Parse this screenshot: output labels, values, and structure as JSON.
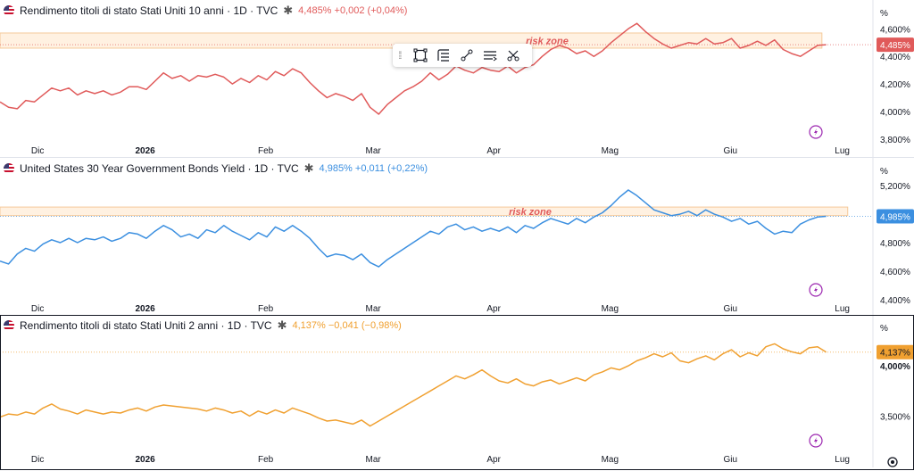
{
  "toolbar": {
    "items": [
      {
        "name": "drag-handle-icon"
      },
      {
        "name": "rectangle-tool-icon"
      },
      {
        "name": "line-style-icon"
      },
      {
        "name": "link-tool-icon"
      },
      {
        "name": "line-width-icon"
      },
      {
        "name": "more-tools-icon"
      }
    ]
  },
  "axis_unit": "%",
  "chart_data": [
    {
      "type": "line",
      "title": "Rendimento titoli di stato Stati Uniti 10 anni · 1D · TVC",
      "change": "4,485% +0,002 (+0,04%)",
      "color": "#e05a5a",
      "last_label": "4,485%",
      "last_value": 4.485,
      "ylim": [
        3.76,
        4.68
      ],
      "y_ticks": [
        {
          "v": 4.6,
          "label": "4,600%"
        },
        {
          "v": 4.4,
          "label": "4,400%"
        },
        {
          "v": 4.2,
          "label": "4,200%"
        },
        {
          "v": 4.0,
          "label": "4,000%"
        },
        {
          "v": 3.8,
          "label": "3,800%"
        }
      ],
      "x_ticks": [
        {
          "x": 5,
          "label": "Dic"
        },
        {
          "x": 30,
          "label": "2026"
        },
        {
          "x": 58,
          "label": "Feb"
        },
        {
          "x": 83,
          "label": "Mar"
        },
        {
          "x": 111,
          "label": "Apr"
        },
        {
          "x": 138,
          "label": "Mag"
        },
        {
          "x": 166,
          "label": "Giu"
        },
        {
          "x": 192,
          "label": "Lug"
        }
      ],
      "zone": {
        "label": "risk zone",
        "y_from": 4.46,
        "y_to": 4.57,
        "x_from": 0,
        "x_to": 191
      },
      "x": [
        0,
        2,
        4,
        6,
        8,
        10,
        12,
        14,
        16,
        18,
        20,
        22,
        24,
        26,
        28,
        30,
        32,
        34,
        36,
        38,
        40,
        42,
        44,
        46,
        48,
        50,
        52,
        54,
        56,
        58,
        60,
        62,
        64,
        66,
        68,
        70,
        72,
        74,
        76,
        78,
        80,
        82,
        84,
        86,
        88,
        90,
        92,
        94,
        96,
        98,
        100,
        102,
        104,
        106,
        108,
        110,
        112,
        114,
        116,
        118,
        120,
        122,
        124,
        126,
        128,
        130,
        132,
        134,
        136,
        138,
        140,
        142,
        144,
        146,
        148,
        150,
        152,
        154,
        156,
        158,
        160,
        162,
        164,
        166,
        168,
        170,
        172,
        174,
        176,
        178,
        180,
        182,
        184,
        186,
        188,
        190,
        192
      ],
      "values": [
        4.07,
        4.03,
        4.02,
        4.08,
        4.07,
        4.12,
        4.17,
        4.15,
        4.17,
        4.12,
        4.15,
        4.13,
        4.15,
        4.12,
        4.14,
        4.18,
        4.18,
        4.16,
        4.22,
        4.28,
        4.24,
        4.26,
        4.22,
        4.26,
        4.25,
        4.27,
        4.25,
        4.2,
        4.24,
        4.21,
        4.26,
        4.23,
        4.29,
        4.26,
        4.31,
        4.28,
        4.21,
        4.15,
        4.1,
        4.13,
        4.11,
        4.08,
        4.13,
        4.03,
        3.98,
        4.05,
        4.1,
        4.15,
        4.18,
        4.22,
        4.28,
        4.23,
        4.27,
        4.33,
        4.3,
        4.28,
        4.32,
        4.3,
        4.29,
        4.33,
        4.28,
        4.32,
        4.34,
        4.4,
        4.45,
        4.48,
        4.46,
        4.42,
        4.44,
        4.4,
        4.44,
        4.5,
        4.55,
        4.6,
        4.64,
        4.58,
        4.53,
        4.49,
        4.46,
        4.48,
        4.5,
        4.49,
        4.53,
        4.49,
        4.5,
        4.53,
        4.46,
        4.48,
        4.51,
        4.48,
        4.52,
        4.45,
        4.42,
        4.4,
        4.44,
        4.48,
        4.485
      ]
    },
    {
      "type": "line",
      "title": "United States 30 Year Government Bonds Yield · 1D · TVC",
      "change": "4,985% +0,011 (+0,22%)",
      "color": "#3b8fe0",
      "last_label": "4,985%",
      "last_value": 4.985,
      "ylim": [
        4.38,
        5.27
      ],
      "y_ticks": [
        {
          "v": 5.2,
          "label": "5,200%"
        },
        {
          "v": 5.0,
          "label": "5,000%"
        },
        {
          "v": 4.8,
          "label": "4,800%"
        },
        {
          "v": 4.6,
          "label": "4,600%"
        },
        {
          "v": 4.4,
          "label": "4,400%"
        }
      ],
      "x_ticks": [
        {
          "x": 5,
          "label": "Dic"
        },
        {
          "x": 30,
          "label": "2026"
        },
        {
          "x": 58,
          "label": "Feb"
        },
        {
          "x": 83,
          "label": "Mar"
        },
        {
          "x": 111,
          "label": "Apr"
        },
        {
          "x": 138,
          "label": "Mag"
        },
        {
          "x": 166,
          "label": "Giu"
        },
        {
          "x": 192,
          "label": "Lug"
        }
      ],
      "zone": {
        "label": "risk zone",
        "y_from": 4.99,
        "y_to": 5.05,
        "x_from": 0,
        "x_to": 197
      },
      "x": [
        0,
        2,
        4,
        6,
        8,
        10,
        12,
        14,
        16,
        18,
        20,
        22,
        24,
        26,
        28,
        30,
        32,
        34,
        36,
        38,
        40,
        42,
        44,
        46,
        48,
        50,
        52,
        54,
        56,
        58,
        60,
        62,
        64,
        66,
        68,
        70,
        72,
        74,
        76,
        78,
        80,
        82,
        84,
        86,
        88,
        90,
        92,
        94,
        96,
        98,
        100,
        102,
        104,
        106,
        108,
        110,
        112,
        114,
        116,
        118,
        120,
        122,
        124,
        126,
        128,
        130,
        132,
        134,
        136,
        138,
        140,
        142,
        144,
        146,
        148,
        150,
        152,
        154,
        156,
        158,
        160,
        162,
        164,
        166,
        168,
        170,
        172,
        174,
        176,
        178,
        180,
        182,
        184,
        186,
        188,
        190,
        192
      ],
      "values": [
        4.67,
        4.65,
        4.72,
        4.76,
        4.74,
        4.79,
        4.82,
        4.8,
        4.83,
        4.8,
        4.83,
        4.82,
        4.84,
        4.81,
        4.83,
        4.87,
        4.86,
        4.83,
        4.88,
        4.92,
        4.89,
        4.84,
        4.86,
        4.83,
        4.89,
        4.87,
        4.92,
        4.88,
        4.85,
        4.82,
        4.87,
        4.84,
        4.91,
        4.88,
        4.92,
        4.88,
        4.83,
        4.76,
        4.7,
        4.72,
        4.71,
        4.68,
        4.72,
        4.66,
        4.63,
        4.68,
        4.72,
        4.76,
        4.8,
        4.84,
        4.88,
        4.86,
        4.91,
        4.93,
        4.89,
        4.91,
        4.88,
        4.9,
        4.88,
        4.91,
        4.87,
        4.92,
        4.9,
        4.94,
        4.97,
        4.95,
        4.93,
        4.97,
        4.94,
        4.98,
        5.01,
        5.06,
        5.12,
        5.17,
        5.13,
        5.08,
        5.03,
        5.01,
        4.99,
        5.0,
        5.02,
        4.99,
        5.03,
        5.0,
        4.98,
        4.95,
        4.97,
        4.93,
        4.95,
        4.9,
        4.86,
        4.88,
        4.87,
        4.93,
        4.96,
        4.98,
        4.985
      ]
    },
    {
      "type": "line",
      "title": "Rendimento titoli di stato Stati Uniti 2 anni · 1D · TVC",
      "change": "4,137% −0,041 (−0,98%)",
      "color": "#f0a030",
      "last_label": "4,137%",
      "last_value": 4.137,
      "ylim": [
        3.13,
        4.33
      ],
      "y_ticks": [
        {
          "v": 4.0,
          "label": "4,000%"
        },
        {
          "v": 3.5,
          "label": "3,500%"
        }
      ],
      "x_ticks": [
        {
          "x": 5,
          "label": "Dic"
        },
        {
          "x": 30,
          "label": "2026"
        },
        {
          "x": 58,
          "label": "Feb"
        },
        {
          "x": 83,
          "label": "Mar"
        },
        {
          "x": 111,
          "label": "Apr"
        },
        {
          "x": 138,
          "label": "Mag"
        },
        {
          "x": 166,
          "label": "Giu"
        },
        {
          "x": 192,
          "label": "Lug"
        }
      ],
      "x": [
        0,
        2,
        4,
        6,
        8,
        10,
        12,
        14,
        16,
        18,
        20,
        22,
        24,
        26,
        28,
        30,
        32,
        34,
        36,
        38,
        40,
        42,
        44,
        46,
        48,
        50,
        52,
        54,
        56,
        58,
        60,
        62,
        64,
        66,
        68,
        70,
        72,
        74,
        76,
        78,
        80,
        82,
        84,
        86,
        88,
        90,
        92,
        94,
        96,
        98,
        100,
        102,
        104,
        106,
        108,
        110,
        112,
        114,
        116,
        118,
        120,
        122,
        124,
        126,
        128,
        130,
        132,
        134,
        136,
        138,
        140,
        142,
        144,
        146,
        148,
        150,
        152,
        154,
        156,
        158,
        160,
        162,
        164,
        166,
        168,
        170,
        172,
        174,
        176,
        178,
        180,
        182,
        184,
        186,
        188,
        190,
        192
      ],
      "values": [
        3.49,
        3.52,
        3.51,
        3.54,
        3.52,
        3.58,
        3.62,
        3.57,
        3.55,
        3.52,
        3.56,
        3.54,
        3.52,
        3.54,
        3.53,
        3.56,
        3.58,
        3.55,
        3.59,
        3.61,
        3.6,
        3.59,
        3.58,
        3.57,
        3.55,
        3.58,
        3.56,
        3.53,
        3.55,
        3.5,
        3.55,
        3.52,
        3.56,
        3.53,
        3.58,
        3.55,
        3.52,
        3.48,
        3.45,
        3.46,
        3.44,
        3.42,
        3.46,
        3.4,
        3.45,
        3.5,
        3.55,
        3.6,
        3.65,
        3.7,
        3.75,
        3.8,
        3.85,
        3.9,
        3.87,
        3.91,
        3.96,
        3.9,
        3.85,
        3.83,
        3.87,
        3.82,
        3.8,
        3.84,
        3.86,
        3.82,
        3.85,
        3.88,
        3.85,
        3.91,
        3.94,
        3.98,
        3.96,
        4.0,
        4.05,
        4.08,
        4.12,
        4.09,
        4.13,
        4.05,
        4.03,
        4.07,
        4.1,
        4.06,
        4.12,
        4.16,
        4.09,
        4.13,
        4.1,
        4.19,
        4.22,
        4.17,
        4.14,
        4.12,
        4.18,
        4.19,
        4.137
      ]
    }
  ]
}
